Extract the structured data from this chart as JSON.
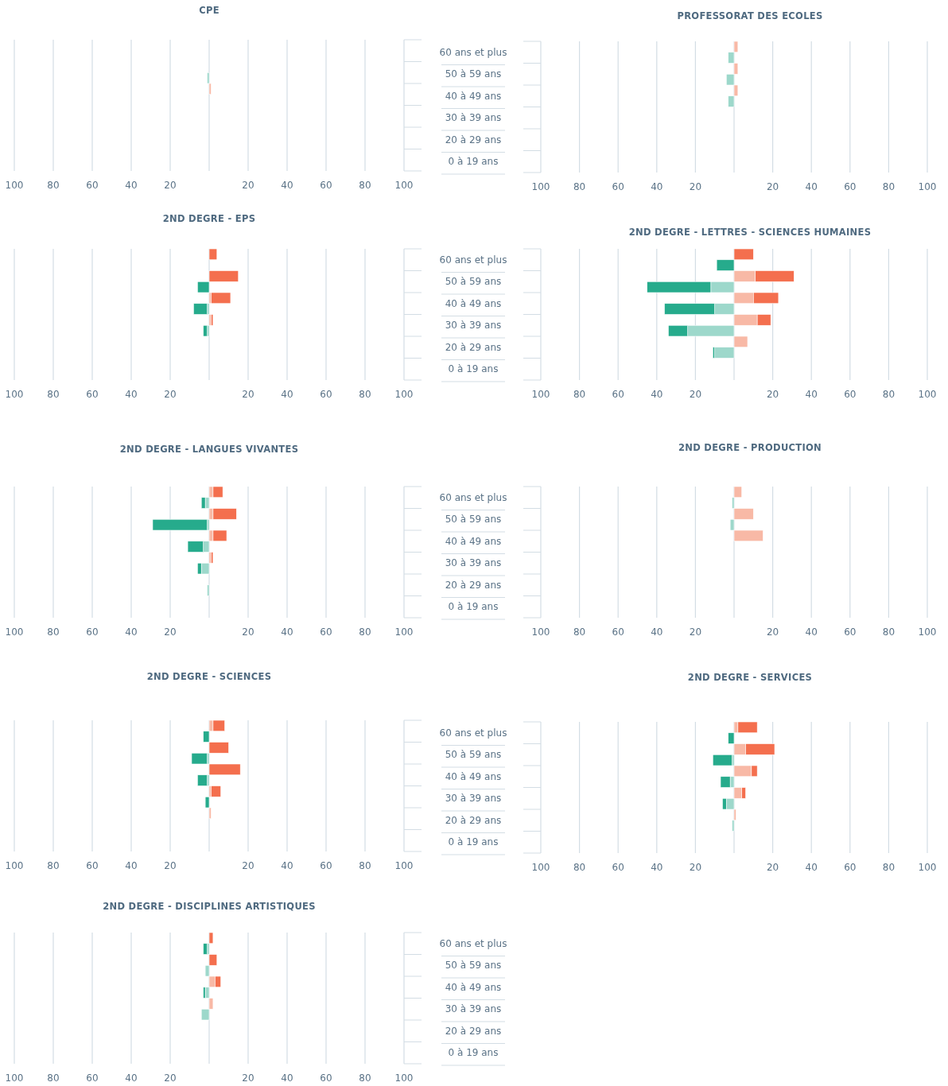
{
  "chart_data": [
    {
      "type": "bar",
      "title": "CPE",
      "orientation": "horizontal",
      "stacked": true,
      "grid": "x",
      "tick_labels": "x",
      "categories": [
        null,
        null,
        null,
        null,
        null,
        null
      ],
      "xlim": [
        -100,
        100
      ],
      "xticks": [
        {
          "value": -100,
          "label": "100"
        },
        {
          "value": -80,
          "label": "80"
        },
        {
          "value": -60,
          "label": "60"
        },
        {
          "value": -40,
          "label": "40"
        },
        {
          "value": -20,
          "label": "20"
        },
        {
          "value": 0,
          "label": null
        },
        20,
        40,
        60,
        80,
        100
      ],
      "series": [
        {
          "color": "#9dd8cb",
          "values": [
            0,
            -1,
            0,
            0,
            0,
            0
          ]
        },
        {
          "color": "#26ab8c",
          "values": [
            0,
            0,
            0,
            0,
            0,
            0
          ]
        },
        {
          "color": "#f8b9a6",
          "values": [
            0,
            0,
            1,
            0,
            0,
            0
          ]
        },
        {
          "color": "#f46f4e",
          "values": [
            0,
            0,
            0,
            0,
            0,
            0
          ]
        }
      ]
    },
    {
      "type": "bar",
      "title": "PROFESSORAT DES ECOLES",
      "orientation": "horizontal",
      "stacked": true,
      "grid": "x",
      "categories": [
        "60  ans et plus",
        "50 à 59 ans",
        "40 à 49 ans",
        "30 à 39 ans",
        "20 à  29 ans",
        "0 à 19 ans"
      ],
      "xlim": [
        -100,
        100
      ],
      "xticks": [
        {
          "value": -100,
          "label": "100"
        },
        {
          "value": -80,
          "label": "80"
        },
        {
          "value": -60,
          "label": "60"
        },
        {
          "value": -40,
          "label": "40"
        },
        {
          "value": -20,
          "label": "20"
        },
        {
          "value": 0,
          "label": null
        },
        20,
        40,
        60,
        80,
        100
      ],
      "series": [
        {
          "color": "#9dd8cb",
          "values": [
            -3,
            -4,
            -3,
            0,
            0,
            0
          ]
        },
        {
          "color": "#26ab8c",
          "values": [
            0,
            0,
            0,
            0,
            0,
            0
          ]
        },
        {
          "color": "#f8b9a6",
          "values": [
            2,
            2,
            2,
            0,
            0,
            0
          ]
        },
        {
          "color": "#f46f4e",
          "values": [
            0,
            0,
            0,
            0,
            0,
            0
          ]
        }
      ]
    },
    {
      "type": "bar",
      "title": "2ND DEGRE - EPS",
      "orientation": "horizontal",
      "stacked": true,
      "grid": "x",
      "tick_labels": "x",
      "categories": [
        null,
        null,
        null,
        null,
        null,
        null
      ],
      "xlim": [
        -100,
        100
      ],
      "xticks": [
        {
          "value": -100,
          "label": "100"
        },
        {
          "value": -80,
          "label": "80"
        },
        {
          "value": -60,
          "label": "60"
        },
        {
          "value": -40,
          "label": "40"
        },
        {
          "value": -20,
          "label": "20"
        },
        {
          "value": 0,
          "label": null
        },
        20,
        40,
        60,
        80,
        100
      ],
      "series": [
        {
          "color": "#9dd8cb",
          "values": [
            0,
            0,
            -1,
            -1,
            0,
            0
          ]
        },
        {
          "color": "#26ab8c",
          "values": [
            0,
            -6,
            -7,
            -2,
            0,
            0
          ]
        },
        {
          "color": "#f8b9a6",
          "values": [
            0,
            0,
            1,
            1,
            0,
            0
          ]
        },
        {
          "color": "#f46f4e",
          "values": [
            4,
            15,
            10,
            1,
            0,
            0
          ]
        }
      ]
    },
    {
      "type": "bar",
      "title": "2ND DEGRE - LETTRES - SCIENCES HUMAINES",
      "orientation": "horizontal",
      "stacked": true,
      "grid": "x",
      "categories": [
        "60  ans et plus",
        "50 à 59 ans",
        "40 à 49 ans",
        "30 à 39 ans",
        "20 à  29 ans",
        "0 à 19 ans"
      ],
      "xlim": [
        -100,
        100
      ],
      "xticks": [
        {
          "value": -100,
          "label": "100"
        },
        {
          "value": -80,
          "label": "80"
        },
        {
          "value": -60,
          "label": "60"
        },
        {
          "value": -40,
          "label": "40"
        },
        {
          "value": -20,
          "label": "20"
        },
        {
          "value": 0,
          "label": null
        },
        20,
        40,
        60,
        80,
        100
      ],
      "series": [
        {
          "color": "#9dd8cb",
          "values": [
            0,
            -12,
            -10,
            -24,
            -10,
            0
          ]
        },
        {
          "color": "#26ab8c",
          "values": [
            -9,
            -33,
            -26,
            -10,
            -1,
            0
          ]
        },
        {
          "color": "#f8b9a6",
          "values": [
            0,
            11,
            10,
            12,
            7,
            0
          ]
        },
        {
          "color": "#f46f4e",
          "values": [
            10,
            20,
            13,
            7,
            0,
            0
          ]
        }
      ]
    },
    {
      "type": "bar",
      "title": "2ND DEGRE - LANGUES VIVANTES",
      "orientation": "horizontal",
      "stacked": true,
      "grid": "x",
      "tick_labels": "x",
      "categories": [
        null,
        null,
        null,
        null,
        null,
        null
      ],
      "xlim": [
        -100,
        100
      ],
      "xticks": [
        {
          "value": -100,
          "label": "100"
        },
        {
          "value": -80,
          "label": "80"
        },
        {
          "value": -60,
          "label": "60"
        },
        {
          "value": -40,
          "label": "40"
        },
        {
          "value": -20,
          "label": "20"
        },
        {
          "value": 0,
          "label": null
        },
        20,
        40,
        60,
        80,
        100
      ],
      "series": [
        {
          "color": "#9dd8cb",
          "values": [
            -2,
            -1,
            -3,
            -4,
            -1,
            0
          ]
        },
        {
          "color": "#26ab8c",
          "values": [
            -2,
            -28,
            -8,
            -2,
            0,
            0
          ]
        },
        {
          "color": "#f8b9a6",
          "values": [
            2,
            2,
            2,
            1,
            0,
            0
          ]
        },
        {
          "color": "#f46f4e",
          "values": [
            5,
            12,
            7,
            1,
            0,
            0
          ]
        }
      ]
    },
    {
      "type": "bar",
      "title": "2ND DEGRE - PRODUCTION",
      "orientation": "horizontal",
      "stacked": true,
      "grid": "x",
      "categories": [
        "60  ans et plus",
        "50 à 59 ans",
        "40 à 49 ans",
        "30 à 39 ans",
        "20 à  29 ans",
        "0 à 19 ans"
      ],
      "xlim": [
        -100,
        100
      ],
      "xticks": [
        {
          "value": -100,
          "label": "100"
        },
        {
          "value": -80,
          "label": "80"
        },
        {
          "value": -60,
          "label": "60"
        },
        {
          "value": -40,
          "label": "40"
        },
        {
          "value": -20,
          "label": "20"
        },
        {
          "value": 0,
          "label": null
        },
        20,
        40,
        60,
        80,
        100
      ],
      "series": [
        {
          "color": "#9dd8cb",
          "values": [
            -1,
            -2,
            0,
            0,
            0,
            0
          ]
        },
        {
          "color": "#26ab8c",
          "values": [
            0,
            0,
            0,
            0,
            0,
            0
          ]
        },
        {
          "color": "#f8b9a6",
          "values": [
            4,
            10,
            15,
            0,
            0,
            0
          ]
        },
        {
          "color": "#f46f4e",
          "values": [
            0,
            0,
            0,
            0,
            0,
            0
          ]
        }
      ]
    },
    {
      "type": "bar",
      "title": "2ND DEGRE - SCIENCES",
      "orientation": "horizontal",
      "stacked": true,
      "grid": "x",
      "tick_labels": "x",
      "categories": [
        null,
        null,
        null,
        null,
        null,
        null
      ],
      "xlim": [
        -100,
        100
      ],
      "xticks": [
        {
          "value": -100,
          "label": "100"
        },
        {
          "value": -80,
          "label": "80"
        },
        {
          "value": -60,
          "label": "60"
        },
        {
          "value": -40,
          "label": "40"
        },
        {
          "value": -20,
          "label": "20"
        },
        {
          "value": 0,
          "label": null
        },
        20,
        40,
        60,
        80,
        100
      ],
      "series": [
        {
          "color": "#9dd8cb",
          "values": [
            0,
            -1,
            -1,
            0,
            0,
            0
          ]
        },
        {
          "color": "#26ab8c",
          "values": [
            -3,
            -8,
            -5,
            -2,
            0,
            0
          ]
        },
        {
          "color": "#f8b9a6",
          "values": [
            2,
            0,
            0,
            1,
            1,
            0
          ]
        },
        {
          "color": "#f46f4e",
          "values": [
            6,
            10,
            16,
            5,
            0,
            0
          ]
        }
      ]
    },
    {
      "type": "bar",
      "title": "2ND DEGRE - SERVICES",
      "orientation": "horizontal",
      "stacked": true,
      "grid": "x",
      "categories": [
        "60  ans et plus",
        "50 à 59 ans",
        "40 à 49 ans",
        "30 à 39 ans",
        "20 à  29 ans",
        "0 à 19 ans"
      ],
      "xlim": [
        -100,
        100
      ],
      "xticks": [
        {
          "value": -100,
          "label": "100"
        },
        {
          "value": -80,
          "label": "80"
        },
        {
          "value": -60,
          "label": "60"
        },
        {
          "value": -40,
          "label": "40"
        },
        {
          "value": -20,
          "label": "20"
        },
        {
          "value": 0,
          "label": null
        },
        20,
        40,
        60,
        80,
        100
      ],
      "series": [
        {
          "color": "#9dd8cb",
          "values": [
            0,
            -1,
            -2,
            -4,
            -1,
            0
          ]
        },
        {
          "color": "#26ab8c",
          "values": [
            -3,
            -10,
            -5,
            -2,
            0,
            0
          ]
        },
        {
          "color": "#f8b9a6",
          "values": [
            2,
            6,
            9,
            4,
            1,
            0
          ]
        },
        {
          "color": "#f46f4e",
          "values": [
            10,
            15,
            3,
            2,
            0,
            0
          ]
        }
      ]
    },
    {
      "type": "bar",
      "title": "2ND DEGRE - DISCIPLINES ARTISTIQUES",
      "orientation": "horizontal",
      "stacked": true,
      "grid": "x",
      "categories": [
        "60 ans et plus",
        "50 à 59 ans",
        "40 à 49 ans",
        "30 à 39 ans",
        "20 à  29 ans",
        "0 à 19 ans"
      ],
      "xlim": [
        -100,
        100
      ],
      "xticks": [
        {
          "value": -100,
          "label": "100"
        },
        {
          "value": -80,
          "label": "80"
        },
        {
          "value": -60,
          "label": "60"
        },
        {
          "value": -40,
          "label": "40"
        },
        {
          "value": -20,
          "label": "20"
        },
        {
          "value": 0,
          "label": null
        },
        20,
        40,
        60,
        80,
        100
      ],
      "series": [
        {
          "color": "#9dd8cb",
          "values": [
            -1,
            -2,
            -2,
            -4,
            0,
            0
          ]
        },
        {
          "color": "#26ab8c",
          "values": [
            -2,
            0,
            -1,
            0,
            0,
            0
          ]
        },
        {
          "color": "#f8b9a6",
          "values": [
            0,
            0,
            3,
            2,
            0,
            0
          ]
        },
        {
          "color": "#f46f4e",
          "values": [
            2,
            4,
            3,
            0,
            0,
            0
          ]
        }
      ]
    }
  ]
}
